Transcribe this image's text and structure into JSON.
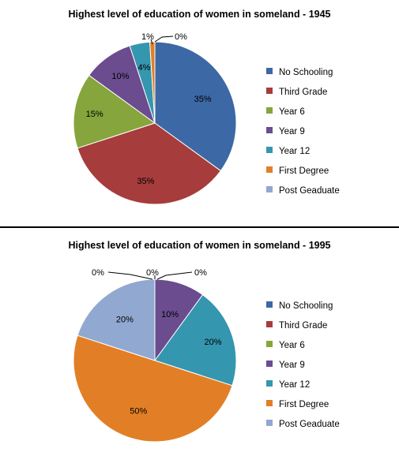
{
  "legend_labels": [
    "No Schooling",
    "Third Grade",
    "Year 6",
    "Year 9",
    "Year 12",
    "First Degree",
    "Post Geaduate"
  ],
  "colors": [
    "#3C68A5",
    "#A63C3C",
    "#86A53D",
    "#6B4C8F",
    "#3596AF",
    "#E27F26",
    "#91A8D0"
  ],
  "chart_data": [
    {
      "type": "pie",
      "title": "Highest level of education of women in someland - 1945",
      "categories": [
        "No Schooling",
        "Third Grade",
        "Year 6",
        "Year 9",
        "Year 12",
        "First Degree",
        "Post Geaduate"
      ],
      "values": [
        35,
        35,
        15,
        10,
        4,
        1,
        0
      ],
      "data_labels": [
        "35%",
        "35%",
        "15%",
        "10%",
        "4%",
        "1%",
        "0%"
      ],
      "legend_position": "right"
    },
    {
      "type": "pie",
      "title": "Highest level of education of women in someland - 1995",
      "categories": [
        "No Schooling",
        "Third Grade",
        "Year 6",
        "Year 9",
        "Year 12",
        "First Degree",
        "Post Geaduate"
      ],
      "values": [
        0,
        0,
        0,
        10,
        20,
        50,
        20
      ],
      "data_labels": [
        "0%",
        "0%",
        "0%",
        "10%",
        "20%",
        "50%",
        "20%"
      ],
      "legend_position": "right"
    }
  ]
}
